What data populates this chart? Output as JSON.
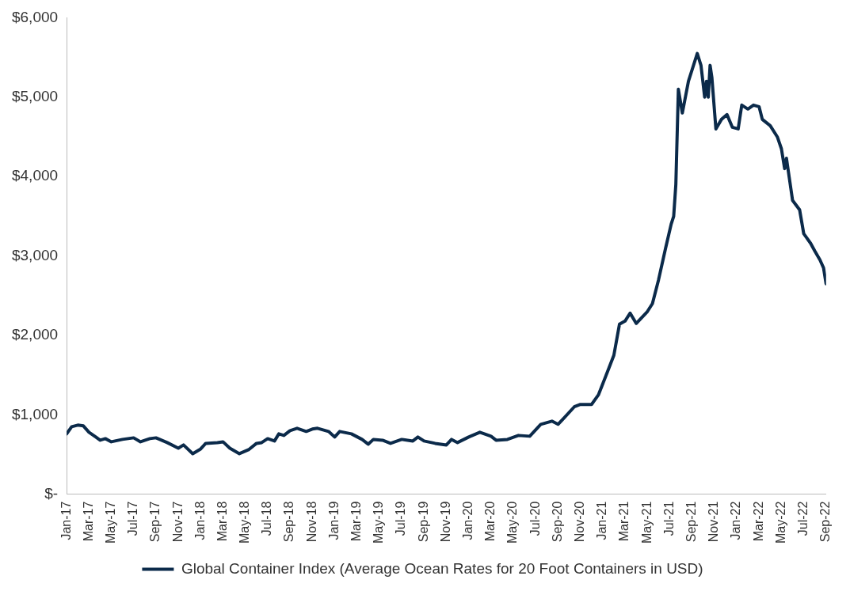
{
  "chart_data": {
    "type": "line",
    "x": [
      "2017-01-01",
      "2017-01-15",
      "2017-02-01",
      "2017-02-15",
      "2017-03-01",
      "2017-03-20",
      "2017-04-01",
      "2017-04-15",
      "2017-05-01",
      "2017-06-01",
      "2017-07-01",
      "2017-07-20",
      "2017-08-15",
      "2017-09-01",
      "2017-10-01",
      "2017-11-01",
      "2017-11-15",
      "2017-12-10",
      "2018-01-01",
      "2018-01-15",
      "2018-02-15",
      "2018-03-01",
      "2018-03-20",
      "2018-04-15",
      "2018-05-10",
      "2018-06-01",
      "2018-06-15",
      "2018-07-01",
      "2018-07-20",
      "2018-08-01",
      "2018-08-15",
      "2018-09-01",
      "2018-09-20",
      "2018-10-15",
      "2018-11-01",
      "2018-11-15",
      "2018-12-15",
      "2019-01-01",
      "2019-01-15",
      "2019-02-15",
      "2019-03-15",
      "2019-04-01",
      "2019-04-15",
      "2019-05-10",
      "2019-06-01",
      "2019-07-01",
      "2019-08-01",
      "2019-08-15",
      "2019-09-01",
      "2019-10-01",
      "2019-11-01",
      "2019-11-15",
      "2019-12-01",
      "2020-01-01",
      "2020-02-01",
      "2020-03-01",
      "2020-03-15",
      "2020-04-15",
      "2020-05-15",
      "2020-06-15",
      "2020-07-15",
      "2020-08-15",
      "2020-09-01",
      "2020-09-15",
      "2020-10-15",
      "2020-11-01",
      "2020-12-01",
      "2020-12-20",
      "2021-01-15",
      "2021-02-01",
      "2021-02-15",
      "2021-03-01",
      "2021-03-15",
      "2021-04-01",
      "2021-05-01",
      "2021-05-15",
      "2021-06-01",
      "2021-06-20",
      "2021-07-05",
      "2021-07-12",
      "2021-07-18",
      "2021-07-25",
      "2021-08-05",
      "2021-08-22",
      "2021-09-15",
      "2021-09-25",
      "2021-10-05",
      "2021-10-10",
      "2021-10-15",
      "2021-10-20",
      "2021-10-25",
      "2021-11-05",
      "2021-11-20",
      "2021-12-05",
      "2021-12-20",
      "2022-01-05",
      "2022-01-15",
      "2022-02-01",
      "2022-02-15",
      "2022-03-01",
      "2022-03-10",
      "2022-04-01",
      "2022-04-20",
      "2022-05-01",
      "2022-05-10",
      "2022-05-15",
      "2022-06-01",
      "2022-06-20",
      "2022-07-01",
      "2022-07-20",
      "2022-08-01",
      "2022-08-15",
      "2022-08-25",
      "2022-09-01"
    ],
    "series": [
      {
        "name": "Global Container Index (Average Ocean Rates for 20 Foot Containers in USD)",
        "color": "#0b2a4a",
        "values": [
          760,
          850,
          870,
          860,
          780,
          720,
          680,
          700,
          660,
          690,
          710,
          660,
          700,
          710,
          650,
          580,
          620,
          510,
          570,
          640,
          650,
          660,
          580,
          510,
          560,
          640,
          650,
          700,
          670,
          760,
          740,
          800,
          830,
          790,
          820,
          830,
          790,
          720,
          790,
          760,
          690,
          630,
          690,
          680,
          640,
          690,
          670,
          720,
          670,
          640,
          620,
          690,
          650,
          720,
          780,
          730,
          680,
          690,
          740,
          730,
          880,
          920,
          880,
          950,
          1100,
          1130,
          1130,
          1250,
          1550,
          1750,
          2140,
          2180,
          2280,
          2150,
          2300,
          2400,
          2700,
          3100,
          3400,
          3500,
          3900,
          5100,
          4800,
          5200,
          5550,
          5400,
          5000,
          5200,
          5000,
          5400,
          5250,
          4600,
          4720,
          4780,
          4620,
          4600,
          4900,
          4850,
          4900,
          4880,
          4720,
          4640,
          4500,
          4350,
          4100,
          4230,
          3700,
          3580,
          3280,
          3160,
          3060,
          2950,
          2850,
          2650
        ]
      }
    ],
    "xlim": [
      "2017-01",
      "2022-09"
    ],
    "xticks": [
      {
        "value": "2017-01",
        "label": "Jan-17"
      },
      {
        "value": "2017-03",
        "label": "Mar-17"
      },
      {
        "value": "2017-05",
        "label": "May-17"
      },
      {
        "value": "2017-07",
        "label": "Jul-17"
      },
      {
        "value": "2017-09",
        "label": "Sep-17"
      },
      {
        "value": "2017-11",
        "label": "Nov-17"
      },
      {
        "value": "2018-01",
        "label": "Jan-18"
      },
      {
        "value": "2018-03",
        "label": "Mar-18"
      },
      {
        "value": "2018-05",
        "label": "May-18"
      },
      {
        "value": "2018-07",
        "label": "Jul-18"
      },
      {
        "value": "2018-09",
        "label": "Sep-18"
      },
      {
        "value": "2018-11",
        "label": "Nov-18"
      },
      {
        "value": "2019-01",
        "label": "Jan-19"
      },
      {
        "value": "2019-03",
        "label": "Mar-19"
      },
      {
        "value": "2019-05",
        "label": "May-19"
      },
      {
        "value": "2019-07",
        "label": "Jul-19"
      },
      {
        "value": "2019-09",
        "label": "Sep-19"
      },
      {
        "value": "2019-11",
        "label": "Nov-19"
      },
      {
        "value": "2020-01",
        "label": "Jan-20"
      },
      {
        "value": "2020-03",
        "label": "Mar-20"
      },
      {
        "value": "2020-05",
        "label": "May-20"
      },
      {
        "value": "2020-07",
        "label": "Jul-20"
      },
      {
        "value": "2020-09",
        "label": "Sep-20"
      },
      {
        "value": "2020-11",
        "label": "Nov-20"
      },
      {
        "value": "2021-01",
        "label": "Jan-21"
      },
      {
        "value": "2021-03",
        "label": "Mar-21"
      },
      {
        "value": "2021-05",
        "label": "May-21"
      },
      {
        "value": "2021-07",
        "label": "Jul-21"
      },
      {
        "value": "2021-09",
        "label": "Sep-21"
      },
      {
        "value": "2021-11",
        "label": "Nov-21"
      },
      {
        "value": "2022-01",
        "label": "Jan-22"
      },
      {
        "value": "2022-03",
        "label": "Mar-22"
      },
      {
        "value": "2022-05",
        "label": "May-22"
      },
      {
        "value": "2022-07",
        "label": "Jul-22"
      },
      {
        "value": "2022-09",
        "label": "Sep-22"
      }
    ],
    "ylim": [
      0,
      6000
    ],
    "yticks": [
      {
        "value": 0,
        "label": "$-"
      },
      {
        "value": 1000,
        "label": "$1,000"
      },
      {
        "value": 2000,
        "label": "$2,000"
      },
      {
        "value": 3000,
        "label": "$3,000"
      },
      {
        "value": 4000,
        "label": "$4,000"
      },
      {
        "value": 5000,
        "label": "$5,000"
      },
      {
        "value": 6000,
        "label": "$6,000"
      }
    ],
    "grid": false,
    "legend": "bottom",
    "marker": "none",
    "line_style": "solid"
  }
}
